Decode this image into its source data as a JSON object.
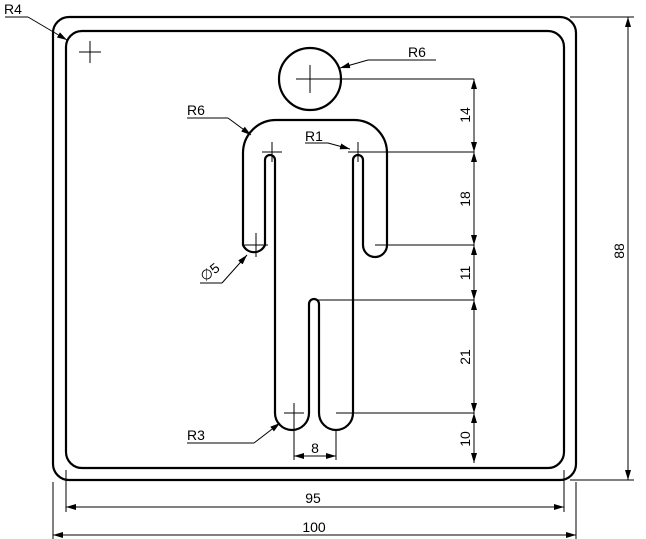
{
  "drawing": {
    "radius_labels": {
      "outer_corner": "R4",
      "head": "R6",
      "shoulder": "R6",
      "arm_inner": "R1",
      "foot": "R3"
    },
    "hole_label": "∅5",
    "vertical_dims": [
      "14",
      "18",
      "11",
      "21",
      "10"
    ],
    "overall_height": "88",
    "leg_gap": "8",
    "inner_width": "95",
    "outer_width": "100"
  }
}
